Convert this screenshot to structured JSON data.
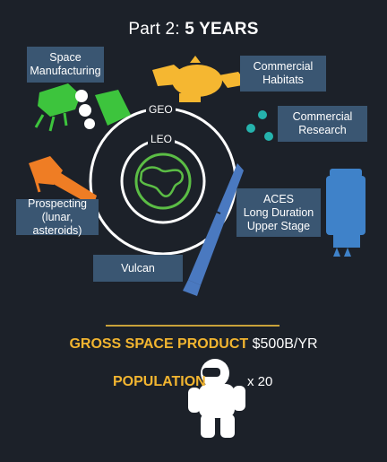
{
  "header": {
    "part": "Part 2:",
    "period": "5 YEARS"
  },
  "orbits": {
    "outer": "GEO",
    "inner": "LEO"
  },
  "callouts": {
    "manufacturing": [
      "Space",
      "Manufacturing"
    ],
    "habitats": [
      "Commercial",
      "Habitats"
    ],
    "research": [
      "Commercial",
      "Research"
    ],
    "prospecting": [
      "Prospecting",
      "(lunar, asteroids)"
    ],
    "aces": [
      "ACES",
      "Long Duration",
      "Upper Stage"
    ],
    "vulcan": "Vulcan"
  },
  "stats": {
    "gsp_label": "GROSS SPACE PRODUCT",
    "gsp_value": "$500B/YR",
    "population_label": "POPULATION",
    "population_value": "x 20"
  },
  "colors": {
    "background": "#1c2129",
    "callout_box": "#3a5672",
    "accent_gold": "#f2b530",
    "manufacturing_green": "#3dc43d",
    "habitat_yellow": "#f5b731",
    "research_teal": "#25b3ad",
    "prospecting_orange": "#ef7d24",
    "aces_blue": "#3f82c9",
    "vulcan_blue": "#4a79c0",
    "earth_green": "#5bbd45"
  },
  "icons": [
    "manufacturing-satellite-icon",
    "habitat-module-icon",
    "research-dots-icon",
    "prospecting-probe-icon",
    "aces-upper-stage-icon",
    "vulcan-rocket-icon",
    "earth-icon",
    "astronaut-icon"
  ]
}
